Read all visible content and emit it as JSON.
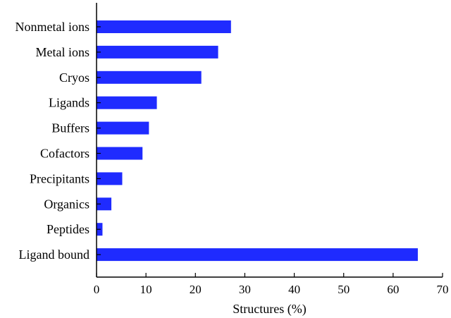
{
  "chart_data": {
    "type": "bar",
    "orientation": "horizontal",
    "categories": [
      "Nonmetal ions",
      "Metal ions",
      "Cryos",
      "Ligands",
      "Buffers",
      "Cofactors",
      "Precipitants",
      "Organics",
      "Peptides",
      "Ligand bound"
    ],
    "values": [
      27.2,
      24.6,
      21.2,
      12.2,
      10.6,
      9.3,
      5.2,
      3.0,
      1.2,
      65.0
    ],
    "xlabel": "Structures (%)",
    "ylabel": "",
    "xlim": [
      0,
      70
    ],
    "xticks": [
      0,
      10,
      20,
      30,
      40,
      50,
      60,
      70
    ],
    "grid": false,
    "legend": "none",
    "bar_color": "#1f2bff"
  }
}
